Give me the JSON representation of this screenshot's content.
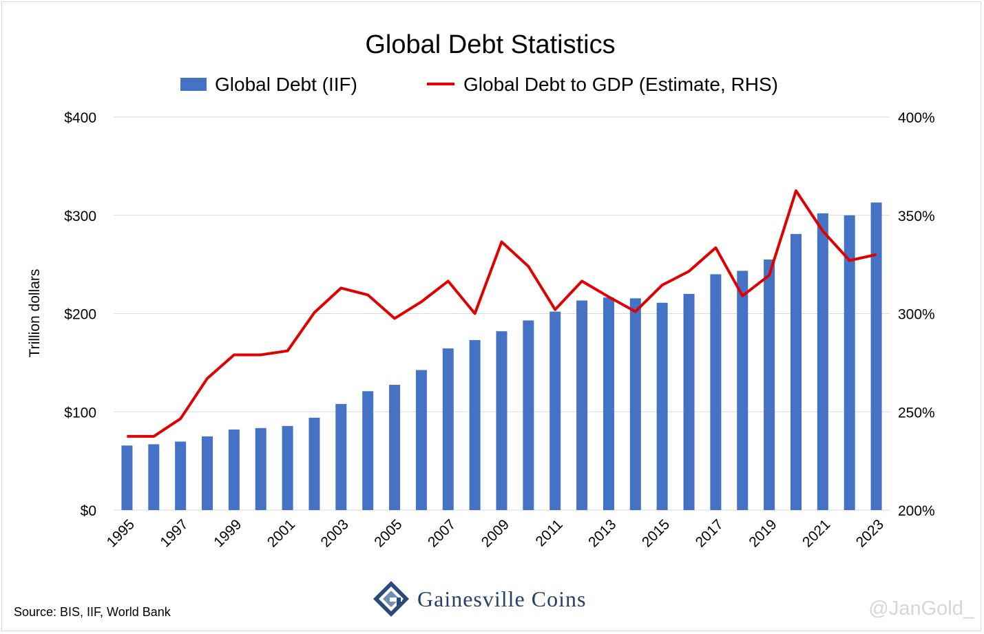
{
  "chart_data": {
    "type": "bar",
    "title": "Global Debt Statistics",
    "xlabel": "",
    "ylabel": "Trillion dollars",
    "categories": [
      "1995",
      "1996",
      "1997",
      "1998",
      "1999",
      "2000",
      "2001",
      "2002",
      "2003",
      "2004",
      "2005",
      "2006",
      "2007",
      "2008",
      "2009",
      "2010",
      "2011",
      "2012",
      "2013",
      "2014",
      "2015",
      "2016",
      "2017",
      "2018",
      "2019",
      "2020",
      "2021",
      "2022",
      "2023"
    ],
    "x_tick_labels": [
      "1995",
      "1997",
      "1999",
      "2001",
      "2003",
      "2005",
      "2007",
      "2009",
      "2011",
      "2013",
      "2015",
      "2017",
      "2019",
      "2021",
      "2023"
    ],
    "series": [
      {
        "name": "Global Debt (IIF)",
        "type": "bar",
        "axis": "left",
        "color": "#4472c4",
        "values": [
          65.7,
          67,
          69.7,
          75,
          82,
          83.5,
          85.6,
          94,
          108,
          121,
          127.5,
          142.5,
          164.5,
          173,
          182,
          193,
          202,
          213.3,
          216.3,
          215.5,
          211,
          220,
          240,
          243.5,
          255,
          281,
          302,
          300,
          313
        ]
      },
      {
        "name": "Global Debt to GDP (Estimate, RHS)",
        "type": "line",
        "axis": "right",
        "color": "#e00000",
        "values": [
          237.5,
          237.5,
          246.5,
          267,
          279,
          279,
          281,
          300.5,
          313,
          309.5,
          297.5,
          306,
          316.5,
          300,
          336.5,
          324,
          302,
          316.5,
          308.5,
          301,
          314.5,
          321.5,
          333.5,
          309,
          319.5,
          362.5,
          342,
          327,
          330
        ]
      }
    ],
    "ylim": [
      0,
      400
    ],
    "y_ticks": [
      0,
      100,
      200,
      300,
      400
    ],
    "y_tick_labels": [
      "$0",
      "$100",
      "$200",
      "$300",
      "$400"
    ],
    "y2lim": [
      200,
      400
    ],
    "y2_ticks": [
      200,
      250,
      300,
      350,
      400
    ],
    "y2_tick_labels": [
      "200%",
      "250%",
      "300%",
      "350%",
      "400%"
    ],
    "grid": true,
    "legend_position": "top-center"
  },
  "footer": {
    "source": "Source: BIS, IIF, World Bank",
    "logo_text": "Gainesville Coins",
    "handle": "@JanGold_"
  }
}
